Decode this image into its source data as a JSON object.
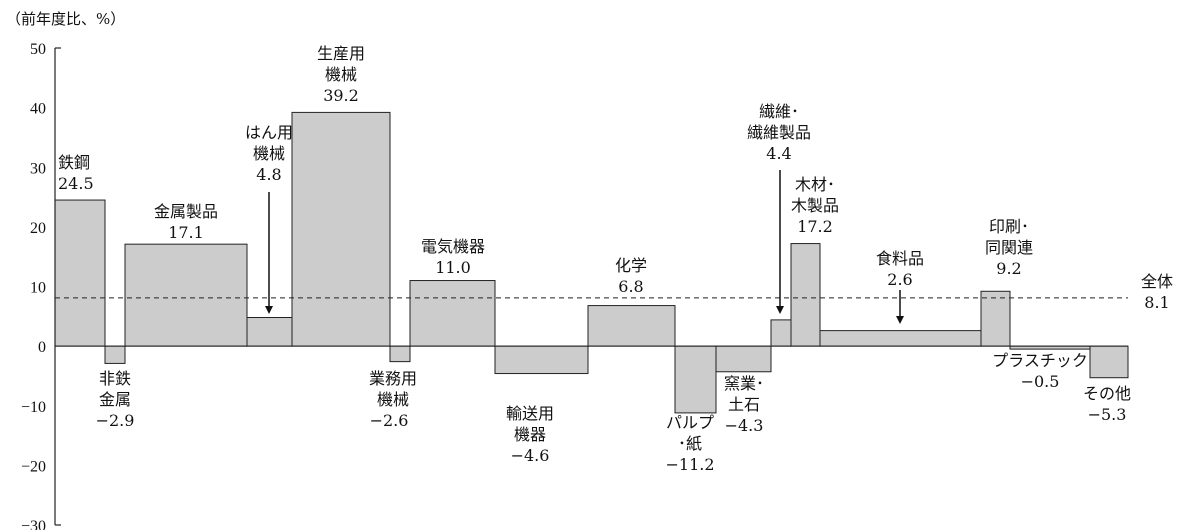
{
  "chart_data": {
    "type": "bar",
    "variant": "variable-width",
    "unit_label": "（前年度比、%）",
    "ylim": [
      -30,
      50
    ],
    "yticks": [
      {
        "value": 50,
        "label": "50"
      },
      {
        "value": 40,
        "label": "40"
      },
      {
        "value": 30,
        "label": "30"
      },
      {
        "value": 20,
        "label": "20"
      },
      {
        "value": 10,
        "label": "10"
      },
      {
        "value": 0,
        "label": "0"
      },
      {
        "value": -10,
        "label": "−10"
      },
      {
        "value": -20,
        "label": "−20"
      },
      {
        "value": -30,
        "label": "−30"
      }
    ],
    "grid": false,
    "bar_color": "#cccccc",
    "bars": [
      {
        "name": [
          "鉄鋼"
        ],
        "value": 24.5,
        "value_label": "24.5"
      },
      {
        "name": [
          "非鉄",
          "金属"
        ],
        "value": -2.9,
        "value_label": "−2.9"
      },
      {
        "name": [
          "金属製品"
        ],
        "value": 17.1,
        "value_label": "17.1"
      },
      {
        "name": [
          "はん用",
          "機械"
        ],
        "value": 4.8,
        "value_label": "4.8"
      },
      {
        "name": [
          "生産用",
          "機械"
        ],
        "value": 39.2,
        "value_label": "39.2"
      },
      {
        "name": [
          "業務用",
          "機械"
        ],
        "value": -2.6,
        "value_label": "−2.6"
      },
      {
        "name": [
          "電気機器"
        ],
        "value": 11.0,
        "value_label": "11.0"
      },
      {
        "name": [
          "輸送用",
          "機器"
        ],
        "value": -4.6,
        "value_label": "−4.6"
      },
      {
        "name": [
          "化学"
        ],
        "value": 6.8,
        "value_label": "6.8"
      },
      {
        "name": [
          "パルプ",
          "･紙"
        ],
        "value": -11.2,
        "value_label": "−11.2"
      },
      {
        "name": [
          "窯業･",
          "土石"
        ],
        "value": -4.3,
        "value_label": "−4.3"
      },
      {
        "name": [
          "繊維･",
          "繊維製品"
        ],
        "value": 4.4,
        "value_label": "4.4"
      },
      {
        "name": [
          "木材･",
          "木製品"
        ],
        "value": 17.2,
        "value_label": "17.2"
      },
      {
        "name": [
          "食料品"
        ],
        "value": 2.6,
        "value_label": "2.6"
      },
      {
        "name": [
          "印刷･",
          "同関連"
        ],
        "value": 9.2,
        "value_label": "9.2"
      },
      {
        "name": [
          "プラスチック"
        ],
        "value": -0.5,
        "value_label": "−0.5"
      },
      {
        "name": [
          "その他"
        ],
        "value": -5.3,
        "value_label": "−5.3"
      }
    ],
    "reference_line": {
      "name": "全体",
      "value": 8.1,
      "value_label": "8.1",
      "style": "dashed"
    }
  }
}
